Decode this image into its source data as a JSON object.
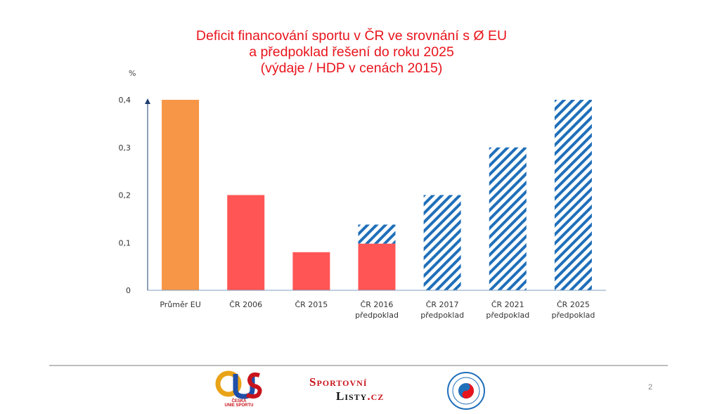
{
  "chart_data": {
    "type": "bar",
    "title_lines": [
      "Deficit financování sportu v ČR ve srovnání s Ø EU",
      "a předpoklad řešení do roku 2025",
      "(výdaje / HDP v cenách 2015)"
    ],
    "y_unit": "%",
    "ylim": [
      0,
      0.4
    ],
    "y_ticks": [
      "0",
      "0,1",
      "0,2",
      "0,3",
      "0,4"
    ],
    "y_tick_values": [
      0,
      0.1,
      0.2,
      0.3,
      0.4
    ],
    "categories": [
      [
        "Průměr EU"
      ],
      [
        "ČR 2006"
      ],
      [
        "ČR 2015"
      ],
      [
        "ČR 2016",
        "předpoklad"
      ],
      [
        "ČR 2017",
        "předpoklad"
      ],
      [
        "ČR 2021",
        "předpoklad"
      ],
      [
        "ČR 2025",
        "předpoklad"
      ]
    ],
    "series": [
      {
        "values": [
          0.4,
          0,
          0,
          0,
          0,
          0,
          0
        ],
        "color": "#f79646",
        "fill": "solid"
      },
      {
        "values": [
          0,
          0.2,
          0.08,
          0.098,
          0,
          0,
          0
        ],
        "color": "#ff5555",
        "fill": "solid"
      },
      {
        "values": [
          0,
          0,
          0,
          0.04,
          0.2,
          0.3,
          0.4
        ],
        "color": "#1f6fba",
        "fill": "diagonal-stripes"
      }
    ],
    "grid": false,
    "legend": "none"
  },
  "footer": {
    "page_number": "2",
    "logo_cus_text_1": "ČESKÁ",
    "logo_cus_text_2": "UNIE SPORTU",
    "logo_sl_word1": "Sportovní",
    "logo_sl_word2": "Listy",
    "logo_sl_tld": ".cz"
  }
}
